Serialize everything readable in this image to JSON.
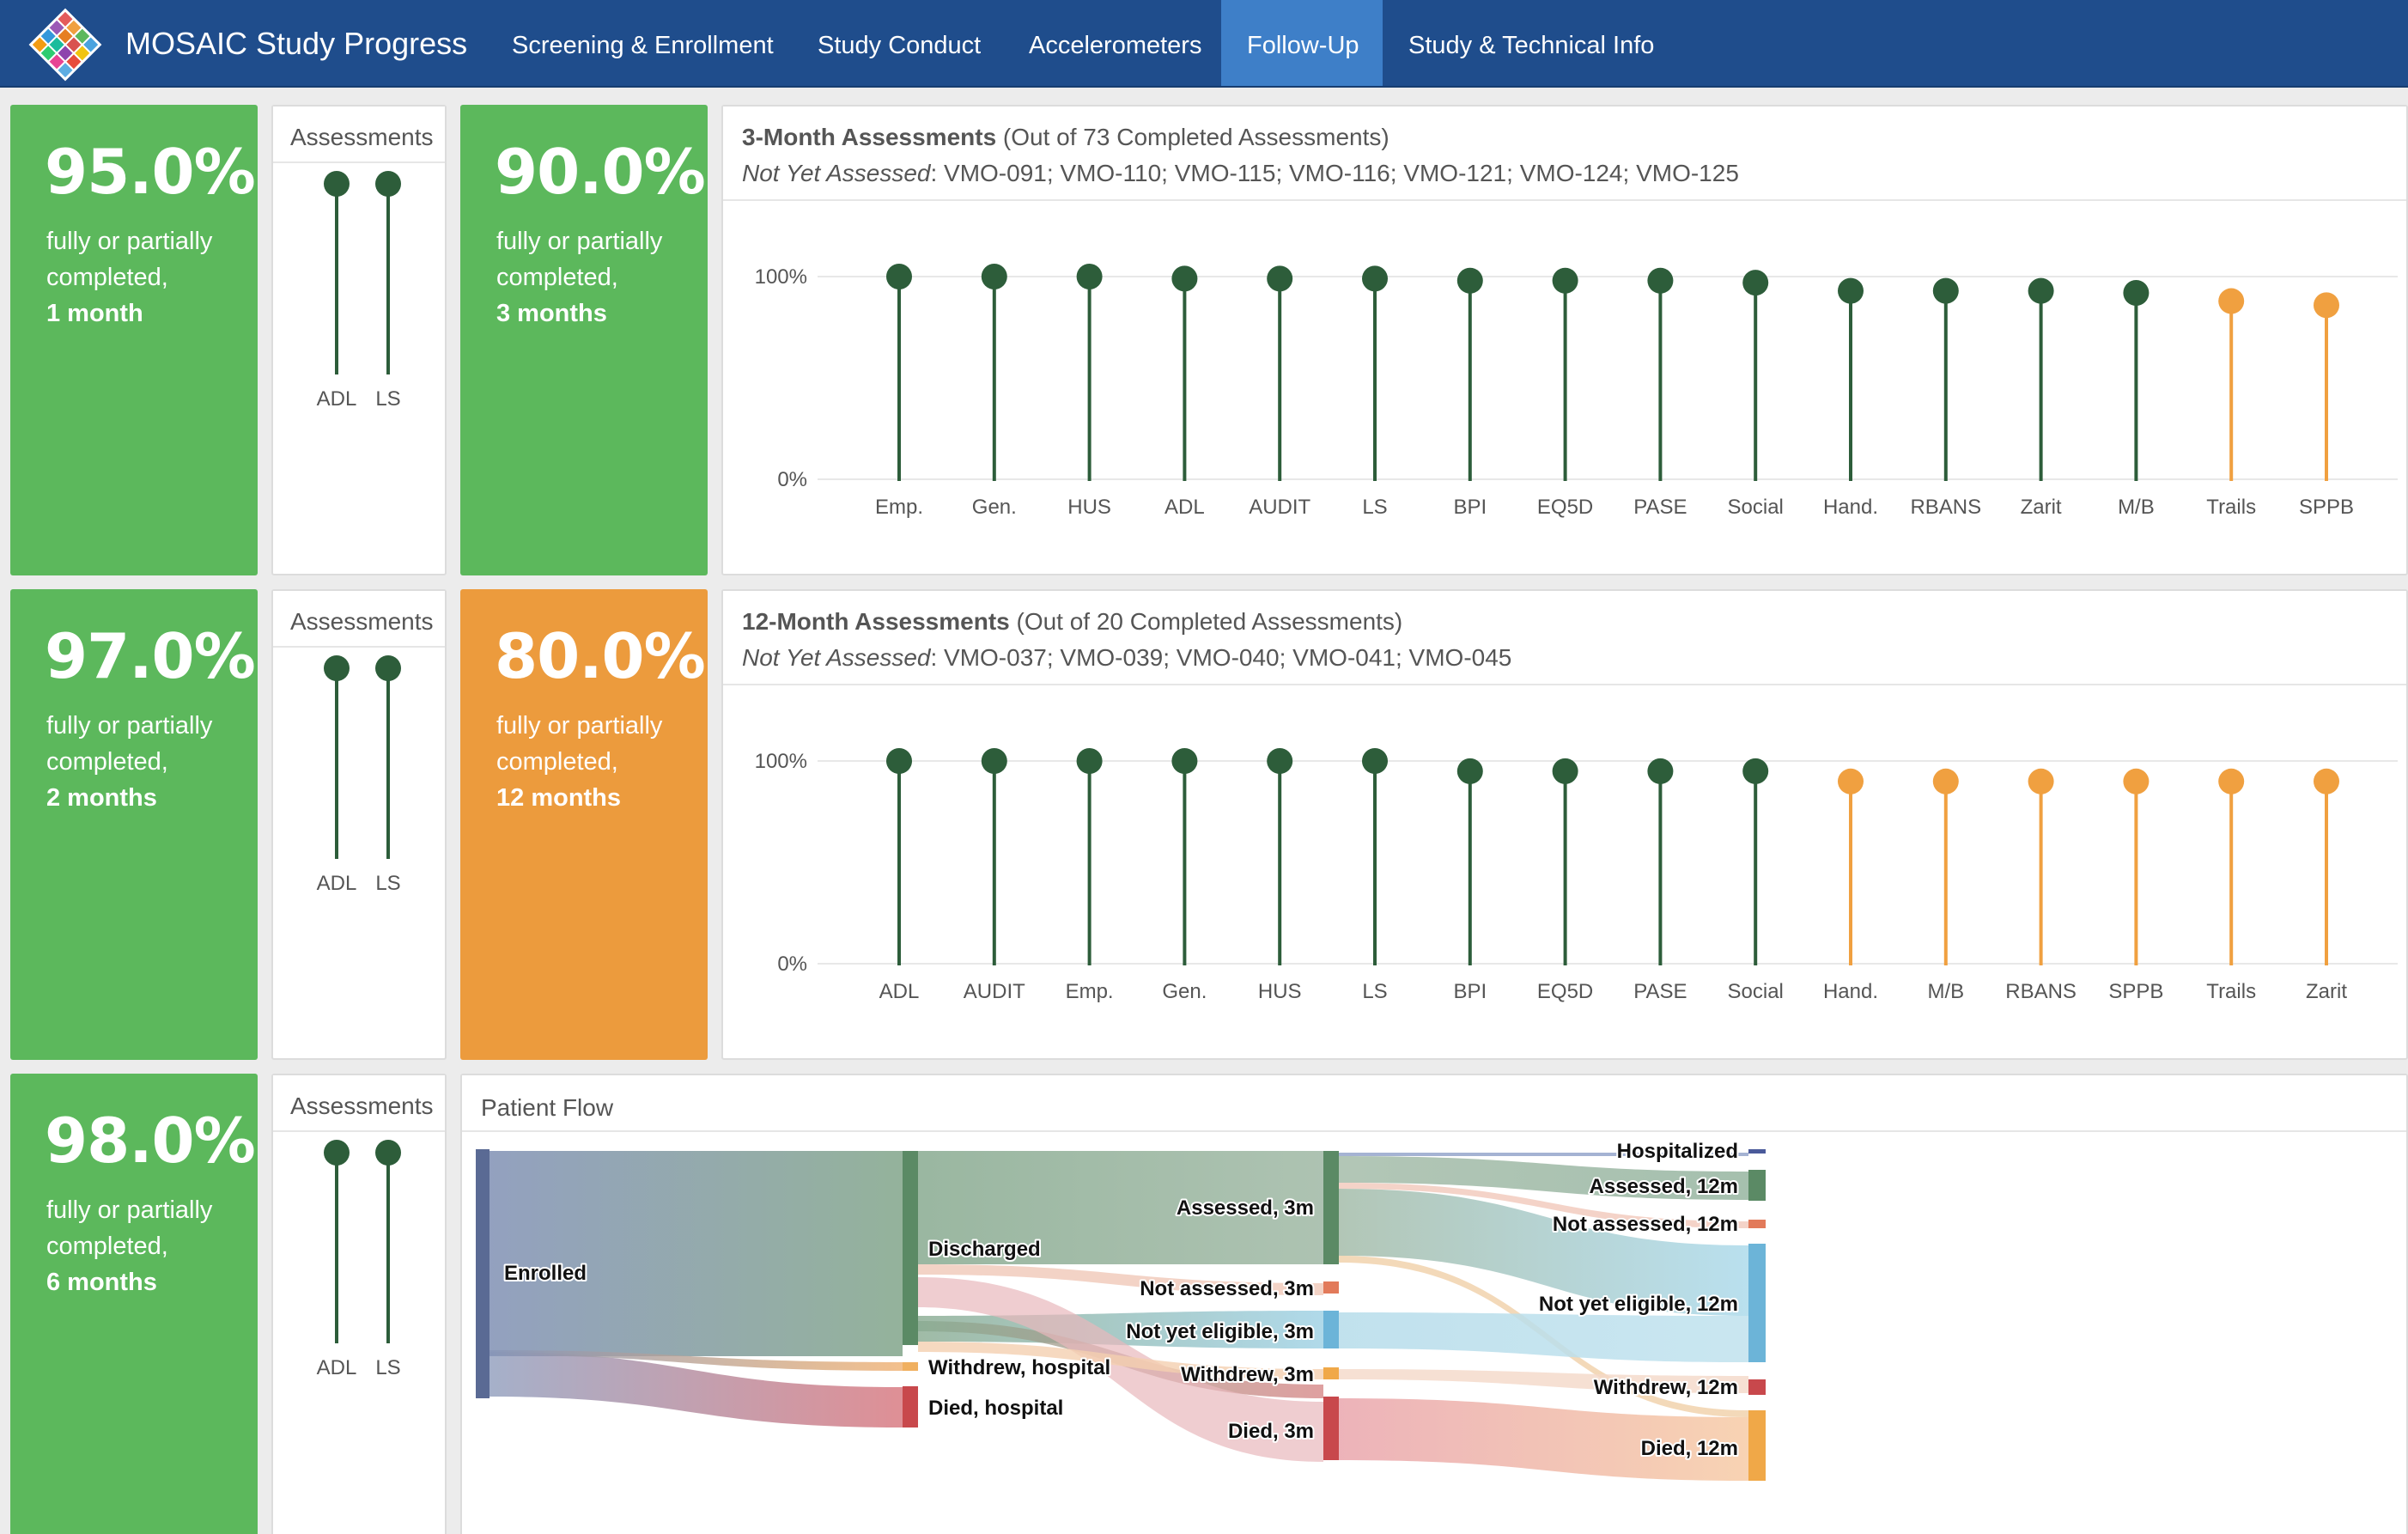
{
  "app": {
    "title": "MOSAIC Study Progress",
    "tabs": [
      {
        "label": "Screening & Enrollment",
        "active": false
      },
      {
        "label": "Study Conduct",
        "active": false
      },
      {
        "label": "Accelerometers",
        "active": false
      },
      {
        "label": "Follow-Up",
        "active": true
      },
      {
        "label": "Study & Technical Info",
        "active": false
      }
    ]
  },
  "colors": {
    "green": "#5cb85c",
    "orange": "#ec9b3d",
    "navbar": "#1f4d8c",
    "dark_green": "#2d5d3a",
    "lollipop_orange": "#f0a040"
  },
  "boxes": [
    {
      "value": "95.0%",
      "line1": "fully or partially",
      "line2": "completed,",
      "line3": "1 month",
      "color": "green"
    },
    {
      "value": "90.0%",
      "line1": "fully or partially",
      "line2": "completed,",
      "line3": "3 months",
      "color": "green"
    },
    {
      "value": "97.0%",
      "line1": "fully or partially",
      "line2": "completed,",
      "line3": "2 months",
      "color": "green"
    },
    {
      "value": "80.0%",
      "line1": "fully or partially",
      "line2": "completed,",
      "line3": "12 months",
      "color": "orange"
    },
    {
      "value": "98.0%",
      "line1": "fully or partially",
      "line2": "completed,",
      "line3": "6 months",
      "color": "green"
    }
  ],
  "small_panels": [
    {
      "title": "Assessments"
    },
    {
      "title": "Assessments"
    },
    {
      "title": "Assessments"
    }
  ],
  "three_month": {
    "title_bold": "3-Month Assessments",
    "title_rest": " (Out of 73 Completed Assessments)",
    "note_label": "Not Yet Assessed",
    "note_value": ": VMO-091; VMO-110; VMO-115; VMO-116; VMO-121; VMO-124; VMO-125"
  },
  "twelve_month": {
    "title_bold": "12-Month Assessments",
    "title_rest": " (Out of 20 Completed Assessments)",
    "note_label": "Not Yet Assessed",
    "note_value": ": VMO-037; VMO-039; VMO-040; VMO-041; VMO-045"
  },
  "patient_flow": {
    "title": "Patient Flow",
    "nodes": [
      "Enrolled",
      "Discharged",
      "Withdrew, hospital",
      "Died, hospital",
      "Assessed, 3m",
      "Not assessed, 3m",
      "Not yet eligible, 3m",
      "Withdrew, 3m",
      "Died, 3m",
      "Hospitalized",
      "Assessed, 12m",
      "Not assessed, 12m",
      "Not yet eligible, 12m",
      "Withdrew, 12m",
      "Died, 12m"
    ]
  },
  "chart_data": [
    {
      "type": "scatter",
      "title": "",
      "categories": [
        "ADL",
        "LS"
      ],
      "values": [
        100,
        100
      ],
      "ylim": [
        0,
        100
      ]
    },
    {
      "type": "scatter",
      "title": "3-Month Assessments",
      "categories": [
        "Emp.",
        "Gen.",
        "HUS",
        "ADL",
        "AUDIT",
        "LS",
        "BPI",
        "EQ5D",
        "PASE",
        "Social",
        "Hand.",
        "RBANS",
        "Zarit",
        "M/B",
        "Trails",
        "SPPB"
      ],
      "values": [
        100,
        100,
        100,
        99,
        99,
        99,
        98,
        98,
        98,
        97,
        93,
        93,
        93,
        92,
        88,
        86
      ],
      "point_colors": [
        "green",
        "green",
        "green",
        "green",
        "green",
        "green",
        "green",
        "green",
        "green",
        "green",
        "green",
        "green",
        "green",
        "green",
        "orange",
        "orange"
      ],
      "y_ticks": [
        "0%",
        "100%"
      ],
      "ylim": [
        0,
        100
      ]
    },
    {
      "type": "scatter",
      "title": "",
      "categories": [
        "ADL",
        "LS"
      ],
      "values": [
        100,
        100
      ],
      "ylim": [
        0,
        100
      ]
    },
    {
      "type": "scatter",
      "title": "12-Month Assessments",
      "categories": [
        "ADL",
        "AUDIT",
        "Emp.",
        "Gen.",
        "HUS",
        "LS",
        "BPI",
        "EQ5D",
        "PASE",
        "Social",
        "Hand.",
        "M/B",
        "RBANS",
        "SPPB",
        "Trails",
        "Zarit"
      ],
      "values": [
        100,
        100,
        100,
        100,
        100,
        100,
        95,
        95,
        95,
        95,
        90,
        90,
        90,
        90,
        90,
        90
      ],
      "point_colors": [
        "green",
        "green",
        "green",
        "green",
        "green",
        "green",
        "green",
        "green",
        "green",
        "green",
        "orange",
        "orange",
        "orange",
        "orange",
        "orange",
        "orange"
      ],
      "y_ticks": [
        "0%",
        "100%"
      ],
      "ylim": [
        0,
        100
      ]
    },
    {
      "type": "scatter",
      "title": "",
      "categories": [
        "ADL",
        "LS"
      ],
      "values": [
        100,
        100
      ],
      "ylim": [
        0,
        100
      ]
    }
  ]
}
